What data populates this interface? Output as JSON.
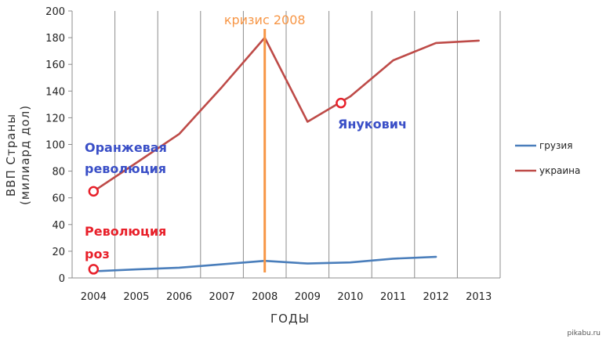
{
  "chart_data": {
    "type": "line",
    "x": [
      "2004",
      "2005",
      "2006",
      "2007",
      "2008",
      "2009",
      "2010",
      "2011",
      "2012",
      "2013"
    ],
    "ylim": [
      0,
      200
    ],
    "yticks": [
      0,
      20,
      40,
      60,
      80,
      100,
      120,
      140,
      160,
      180,
      200
    ],
    "xlabel": "ГОДЫ",
    "ylabel_line1": "ВВП Страны",
    "ylabel_line2": "(милиард дол)",
    "grid": "vertical",
    "legend_position": "right",
    "series": [
      {
        "name": "грузия",
        "color": "#4a7ebb",
        "values": [
          5,
          6.4,
          7.7,
          10.2,
          12.8,
          10.8,
          11.6,
          14.4,
          15.8,
          null
        ]
      },
      {
        "name": "украина",
        "color": "#be4b48",
        "values": [
          64.9,
          86.2,
          107.8,
          143,
          180,
          117,
          136,
          163,
          176,
          177.8
        ]
      }
    ],
    "annotations": {
      "crisis": {
        "label": "кризис 2008",
        "x": "2008",
        "color": "#f79646"
      },
      "orange_revolution": {
        "line1": "Оранжевая",
        "line2": "революция",
        "color": "#3a4fc7",
        "x": "2004",
        "y": 64.9
      },
      "rose_revolution": {
        "line1": "Революция",
        "line2": "роз",
        "color": "#e8202a",
        "x": "2004",
        "y": 6.5
      },
      "yanukovych": {
        "label": "Янукович",
        "color": "#3a4fc7",
        "x": "2010",
        "y": 131
      }
    }
  },
  "watermark": "pikabu.ru"
}
